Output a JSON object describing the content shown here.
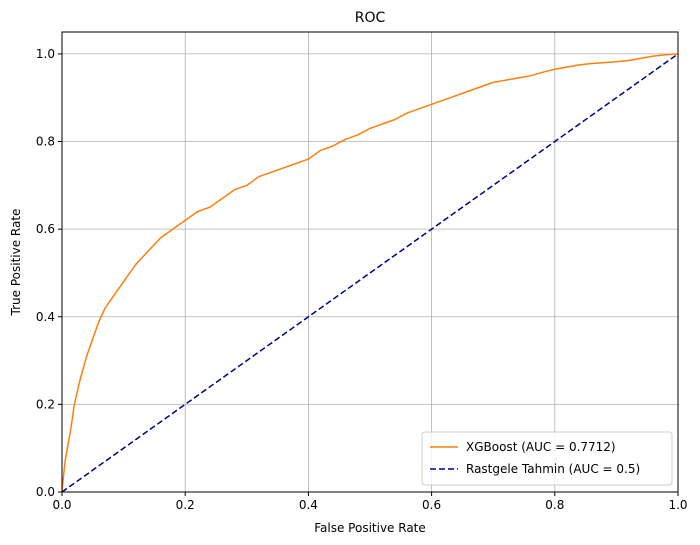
{
  "chart_data": {
    "type": "line",
    "title": "ROC",
    "xlabel": "False Positive Rate",
    "ylabel": "True Positive Rate",
    "xlim": [
      0.0,
      1.0
    ],
    "ylim": [
      0.0,
      1.05
    ],
    "xticks": [
      0.0,
      0.2,
      0.4,
      0.6,
      0.8,
      1.0
    ],
    "xtick_labels": [
      "0.0",
      "0.2",
      "0.4",
      "0.6",
      "0.8",
      "1.0"
    ],
    "yticks": [
      0.0,
      0.2,
      0.4,
      0.6,
      0.8,
      1.0
    ],
    "ytick_labels": [
      "0.0",
      "0.2",
      "0.4",
      "0.6",
      "0.8",
      "1.0"
    ],
    "grid": true,
    "legend_position": "bottom-right",
    "series": [
      {
        "name": "XGBoost (AUC = 0.7712)",
        "color": "#ff7f0e",
        "dash": "solid",
        "x": [
          0.0,
          0.002,
          0.005,
          0.01,
          0.015,
          0.02,
          0.03,
          0.04,
          0.05,
          0.06,
          0.07,
          0.08,
          0.09,
          0.1,
          0.12,
          0.14,
          0.16,
          0.18,
          0.2,
          0.22,
          0.24,
          0.26,
          0.28,
          0.3,
          0.32,
          0.34,
          0.36,
          0.38,
          0.4,
          0.42,
          0.44,
          0.46,
          0.48,
          0.5,
          0.52,
          0.54,
          0.56,
          0.58,
          0.6,
          0.62,
          0.64,
          0.66,
          0.68,
          0.7,
          0.72,
          0.74,
          0.76,
          0.78,
          0.8,
          0.82,
          0.84,
          0.86,
          0.88,
          0.9,
          0.92,
          0.94,
          0.96,
          0.98,
          1.0
        ],
        "y": [
          0.0,
          0.03,
          0.07,
          0.11,
          0.15,
          0.2,
          0.26,
          0.31,
          0.35,
          0.39,
          0.42,
          0.44,
          0.46,
          0.48,
          0.52,
          0.55,
          0.58,
          0.6,
          0.62,
          0.64,
          0.65,
          0.67,
          0.69,
          0.7,
          0.72,
          0.73,
          0.74,
          0.75,
          0.76,
          0.78,
          0.79,
          0.805,
          0.815,
          0.83,
          0.84,
          0.85,
          0.865,
          0.875,
          0.885,
          0.895,
          0.905,
          0.915,
          0.925,
          0.935,
          0.94,
          0.945,
          0.95,
          0.958,
          0.965,
          0.97,
          0.975,
          0.978,
          0.98,
          0.982,
          0.985,
          0.99,
          0.995,
          0.998,
          1.0
        ]
      },
      {
        "name": "Rastgele Tahmin (AUC = 0.5)",
        "color": "#000080",
        "dash": "dashed",
        "x": [
          0.0,
          1.0
        ],
        "y": [
          0.0,
          1.0
        ]
      }
    ]
  }
}
